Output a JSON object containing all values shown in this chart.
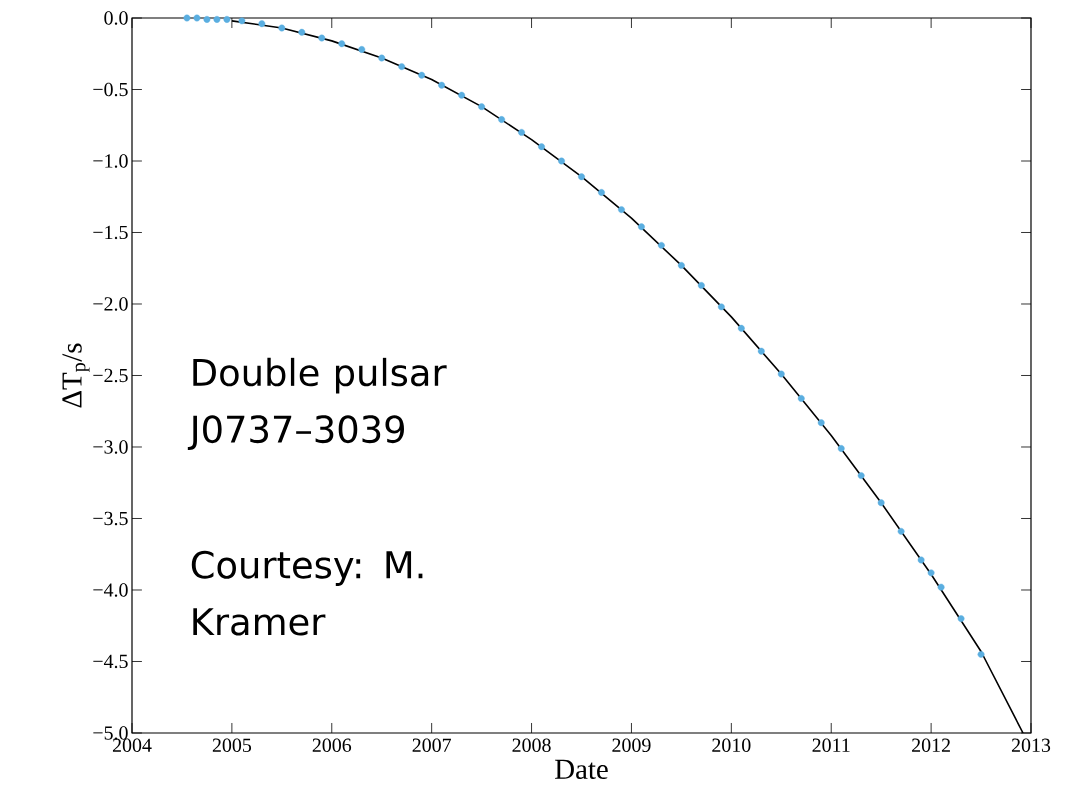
{
  "chart_data": {
    "type": "scatter",
    "xlabel": "Date",
    "ylabel": "ΔT$_{p}$/s",
    "xlim": [
      2004,
      2013
    ],
    "ylim": [
      -5.0,
      0.0
    ],
    "xticks": [
      2004,
      2005,
      2006,
      2007,
      2008,
      2009,
      2010,
      2011,
      2012,
      2013
    ],
    "yticks": [
      {
        "value": 0.0,
        "label": "0.0"
      },
      {
        "value": -0.5,
        "label": "−0.5"
      },
      {
        "value": -1.0,
        "label": "−1.0"
      },
      {
        "value": -1.5,
        "label": "−1.5"
      },
      {
        "value": -2.0,
        "label": "−2.0"
      },
      {
        "value": -2.5,
        "label": "−2.5"
      },
      {
        "value": -3.0,
        "label": "−3.0"
      },
      {
        "value": -3.5,
        "label": "−3.5"
      },
      {
        "value": -4.0,
        "label": "−4.0"
      },
      {
        "value": -4.5,
        "label": "−4.5"
      },
      {
        "value": -5.0,
        "label": "−5.0"
      }
    ],
    "grid": false,
    "annotations": [
      "Double pulsar J0737–3039",
      "Courtesy: M. Kramer"
    ],
    "series": [
      {
        "marker": "circle",
        "color": "#5aaee0",
        "x": [
          2004.55,
          2004.65,
          2004.75,
          2004.85,
          2004.95,
          2005.1,
          2005.3,
          2005.5,
          2005.7,
          2005.9,
          2006.1,
          2006.3,
          2006.5,
          2006.7,
          2006.9,
          2007.1,
          2007.3,
          2007.5,
          2007.7,
          2007.9,
          2008.1,
          2008.3,
          2008.5,
          2008.7,
          2008.9,
          2009.1,
          2009.3,
          2009.5,
          2009.7,
          2009.9,
          2010.1,
          2010.3,
          2010.5,
          2010.7,
          2010.9,
          2011.1,
          2011.3,
          2011.5,
          2011.7,
          2011.9,
          2012.0,
          2012.1,
          2012.3,
          2012.5
        ],
        "values": [
          0.0,
          0.0,
          -0.01,
          -0.01,
          -0.01,
          -0.02,
          -0.04,
          -0.07,
          -0.1,
          -0.14,
          -0.18,
          -0.22,
          -0.28,
          -0.34,
          -0.4,
          -0.47,
          -0.54,
          -0.62,
          -0.71,
          -0.8,
          -0.9,
          -1.0,
          -1.11,
          -1.22,
          -1.34,
          -1.46,
          -1.59,
          -1.73,
          -1.87,
          -2.02,
          -2.17,
          -2.33,
          -2.49,
          -2.66,
          -2.83,
          -3.01,
          -3.2,
          -3.39,
          -3.59,
          -3.79,
          -3.88,
          -3.98,
          -4.2,
          -4.45
        ]
      },
      {
        "type": "line",
        "marker": "none",
        "line_style": "solid",
        "color": "#000000",
        "x": [
          2005.0,
          2005.5,
          2006.0,
          2006.5,
          2007.0,
          2007.5,
          2008.0,
          2008.5,
          2009.0,
          2009.5,
          2010.0,
          2010.5,
          2011.0,
          2011.5,
          2012.0,
          2012.5,
          2012.92
        ],
        "values": [
          -0.02,
          -0.07,
          -0.16,
          -0.28,
          -0.43,
          -0.62,
          -0.85,
          -1.11,
          -1.4,
          -1.73,
          -2.09,
          -2.49,
          -2.92,
          -3.39,
          -3.89,
          -4.43,
          -5.0
        ]
      }
    ]
  }
}
